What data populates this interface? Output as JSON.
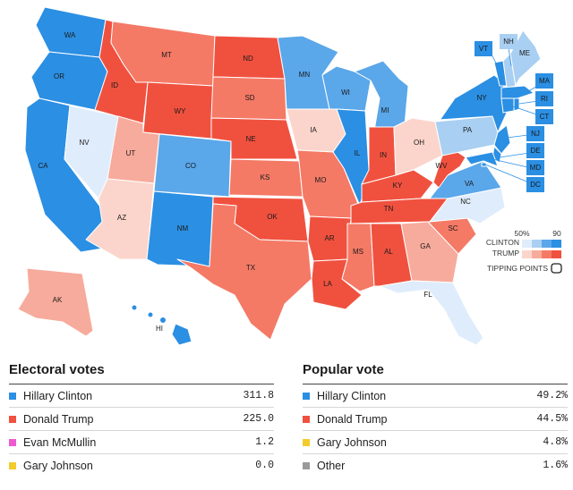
{
  "colors": {
    "dem_dark": "#2b8fe3",
    "dem_mid": "#5aa7ea",
    "dem_light": "#a9cff2",
    "dem_pale": "#dfecfb",
    "rep_dark": "#f0513f",
    "rep_mid": "#f47a66",
    "rep_light": "#f7ab9c",
    "rep_pale": "#fbd5cb",
    "mcmullin": "#ee5ad0",
    "johnson": "#f4cb2c",
    "other": "#9a9a9a"
  },
  "states": [
    {
      "code": "WA",
      "lean": "dem_dark"
    },
    {
      "code": "OR",
      "lean": "dem_dark"
    },
    {
      "code": "CA",
      "lean": "dem_dark"
    },
    {
      "code": "NV",
      "lean": "dem_pale"
    },
    {
      "code": "ID",
      "lean": "rep_dark"
    },
    {
      "code": "MT",
      "lean": "rep_mid"
    },
    {
      "code": "WY",
      "lean": "rep_dark"
    },
    {
      "code": "UT",
      "lean": "rep_light"
    },
    {
      "code": "AZ",
      "lean": "rep_pale"
    },
    {
      "code": "CO",
      "lean": "dem_mid"
    },
    {
      "code": "NM",
      "lean": "dem_dark"
    },
    {
      "code": "ND",
      "lean": "rep_dark"
    },
    {
      "code": "SD",
      "lean": "rep_mid"
    },
    {
      "code": "NE",
      "lean": "rep_dark"
    },
    {
      "code": "KS",
      "lean": "rep_mid"
    },
    {
      "code": "OK",
      "lean": "rep_dark"
    },
    {
      "code": "TX",
      "lean": "rep_mid"
    },
    {
      "code": "MN",
      "lean": "dem_mid"
    },
    {
      "code": "IA",
      "lean": "rep_pale"
    },
    {
      "code": "MO",
      "lean": "rep_mid"
    },
    {
      "code": "AR",
      "lean": "rep_dark"
    },
    {
      "code": "LA",
      "lean": "rep_dark"
    },
    {
      "code": "WI",
      "lean": "dem_mid"
    },
    {
      "code": "IL",
      "lean": "dem_dark"
    },
    {
      "code": "MI",
      "lean": "dem_mid"
    },
    {
      "code": "IN",
      "lean": "rep_dark"
    },
    {
      "code": "OH",
      "lean": "rep_pale"
    },
    {
      "code": "KY",
      "lean": "rep_dark"
    },
    {
      "code": "TN",
      "lean": "rep_dark"
    },
    {
      "code": "MS",
      "lean": "rep_mid"
    },
    {
      "code": "AL",
      "lean": "rep_dark"
    },
    {
      "code": "GA",
      "lean": "rep_light"
    },
    {
      "code": "FL",
      "lean": "dem_pale"
    },
    {
      "code": "SC",
      "lean": "rep_mid"
    },
    {
      "code": "NC",
      "lean": "dem_pale"
    },
    {
      "code": "VA",
      "lean": "dem_mid"
    },
    {
      "code": "WV",
      "lean": "rep_dark"
    },
    {
      "code": "PA",
      "lean": "dem_light"
    },
    {
      "code": "NY",
      "lean": "dem_dark"
    },
    {
      "code": "ME",
      "lean": "dem_light"
    },
    {
      "code": "AK",
      "lean": "rep_light"
    },
    {
      "code": "HI",
      "lean": "dem_dark"
    },
    {
      "code": "VT",
      "lean": "dem_dark"
    },
    {
      "code": "NH",
      "lean": "dem_light"
    },
    {
      "code": "MA",
      "lean": "dem_dark"
    },
    {
      "code": "RI",
      "lean": "dem_dark"
    },
    {
      "code": "CT",
      "lean": "dem_dark"
    },
    {
      "code": "NJ",
      "lean": "dem_dark"
    },
    {
      "code": "DE",
      "lean": "dem_dark"
    },
    {
      "code": "MD",
      "lean": "dem_dark"
    },
    {
      "code": "DC",
      "lean": "dem_dark"
    }
  ],
  "map_legend": {
    "scale_low": "50%",
    "scale_high": "90",
    "clinton_label": "CLINTON",
    "trump_label": "TRUMP",
    "tipping_label": "TIPPING POINTS"
  },
  "electoral_votes": {
    "title": "Electoral votes",
    "rows": [
      {
        "name": "Hillary Clinton",
        "value": "311.8",
        "color": "#2b8fe3"
      },
      {
        "name": "Donald Trump",
        "value": "225.0",
        "color": "#f0513f"
      },
      {
        "name": "Evan McMullin",
        "value": "1.2",
        "color": "#ee5ad0"
      },
      {
        "name": "Gary Johnson",
        "value": "0.0",
        "color": "#f4cb2c"
      }
    ]
  },
  "popular_vote": {
    "title": "Popular vote",
    "rows": [
      {
        "name": "Hillary Clinton",
        "value": "49.2%",
        "color": "#2b8fe3"
      },
      {
        "name": "Donald Trump",
        "value": "44.5%",
        "color": "#f0513f"
      },
      {
        "name": "Gary Johnson",
        "value": "4.8%",
        "color": "#f4cb2c"
      },
      {
        "name": "Other",
        "value": "1.6%",
        "color": "#9a9a9a"
      }
    ]
  }
}
